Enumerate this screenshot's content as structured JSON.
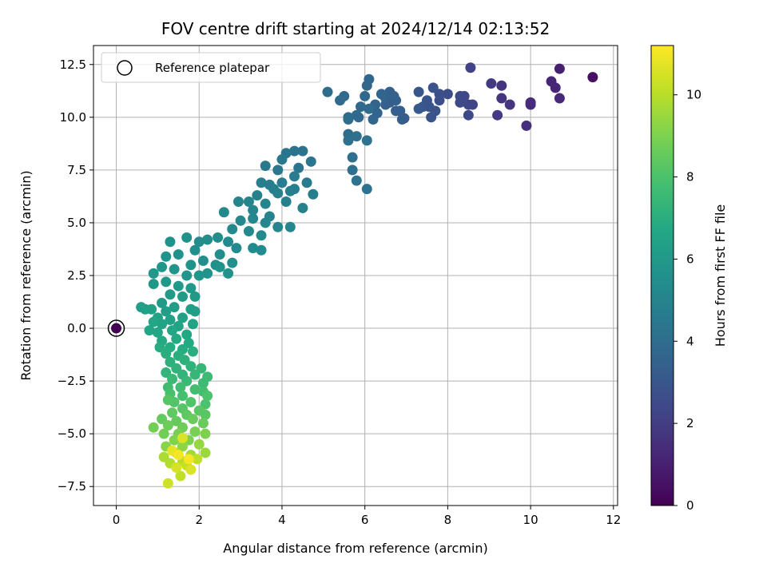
{
  "chart_data": {
    "type": "scatter",
    "title": "FOV centre drift starting at 2024/12/14 02:13:52",
    "xlabel": "Angular distance from reference (arcmin)",
    "ylabel": "Rotation from reference (arcmin)",
    "xlim": [
      -0.55,
      12.1
    ],
    "ylim": [
      -8.4,
      13.4
    ],
    "xticks": [
      0,
      2,
      4,
      6,
      8,
      10,
      12
    ],
    "yticks": [
      -7.5,
      -5.0,
      -2.5,
      0.0,
      2.5,
      5.0,
      7.5,
      10.0,
      12.5
    ],
    "grid": true,
    "legend": {
      "placement": "top-left",
      "entries": [
        "Reference platepar"
      ]
    },
    "reference_point": {
      "x": 0,
      "y": 0
    },
    "colorbar": {
      "label": "Hours from first FF file",
      "colormap": "viridis",
      "range": [
        0,
        11.2
      ],
      "ticks": [
        0,
        2,
        4,
        6,
        8,
        10
      ]
    },
    "points_note_values": "each point: [x, y, hours]",
    "points": [
      [
        11.5,
        11.9,
        0.5
      ],
      [
        10.7,
        12.3,
        1.0
      ],
      [
        10.5,
        11.7,
        1.2
      ],
      [
        10.6,
        11.4,
        1.2
      ],
      [
        10.7,
        10.9,
        1.3
      ],
      [
        10.0,
        10.7,
        1.4
      ],
      [
        10.0,
        10.6,
        1.4
      ],
      [
        9.9,
        9.6,
        1.5
      ],
      [
        9.5,
        10.6,
        1.7
      ],
      [
        9.3,
        10.9,
        1.7
      ],
      [
        9.3,
        11.5,
        1.7
      ],
      [
        9.05,
        11.6,
        1.9
      ],
      [
        9.2,
        10.1,
        1.9
      ],
      [
        8.55,
        12.35,
        2.2
      ],
      [
        8.5,
        10.6,
        2.3
      ],
      [
        8.6,
        10.6,
        2.3
      ],
      [
        8.5,
        10.1,
        2.4
      ],
      [
        8.4,
        11.0,
        2.4
      ],
      [
        8.3,
        10.7,
        2.5
      ],
      [
        8.3,
        11.0,
        2.5
      ],
      [
        8.0,
        11.1,
        2.6
      ],
      [
        7.8,
        11.1,
        2.7
      ],
      [
        7.8,
        10.8,
        2.7
      ],
      [
        7.7,
        10.3,
        2.8
      ],
      [
        7.65,
        11.4,
        2.8
      ],
      [
        7.6,
        10.0,
        2.9
      ],
      [
        7.55,
        10.5,
        2.9
      ],
      [
        7.5,
        10.8,
        2.9
      ],
      [
        7.4,
        10.5,
        3.0
      ],
      [
        7.3,
        11.2,
        3.0
      ],
      [
        7.3,
        10.4,
        3.1
      ],
      [
        6.95,
        9.95,
        3.3
      ],
      [
        6.85,
        10.3,
        3.3
      ],
      [
        6.75,
        10.3,
        3.4
      ],
      [
        6.75,
        10.8,
        3.4
      ],
      [
        6.6,
        11.2,
        3.4
      ],
      [
        6.7,
        11.0,
        3.5
      ],
      [
        6.5,
        10.6,
        3.5
      ],
      [
        6.5,
        10.9,
        3.6
      ],
      [
        6.4,
        11.1,
        3.6
      ],
      [
        6.25,
        10.6,
        3.6
      ],
      [
        6.2,
        9.9,
        3.7
      ],
      [
        6.1,
        11.8,
        3.7
      ],
      [
        6.05,
        11.5,
        3.7
      ],
      [
        6.0,
        11.0,
        3.8
      ],
      [
        5.9,
        10.5,
        3.8
      ],
      [
        5.85,
        10.0,
        3.8
      ],
      [
        5.8,
        10.1,
        3.8
      ],
      [
        6.1,
        10.4,
        3.9
      ],
      [
        5.6,
        10.0,
        3.9
      ],
      [
        5.5,
        11.0,
        3.9
      ],
      [
        5.4,
        10.8,
        3.9
      ],
      [
        5.1,
        11.2,
        4.0
      ],
      [
        5.6,
        9.9,
        4.0
      ],
      [
        5.6,
        9.2,
        4.0
      ],
      [
        5.8,
        9.1,
        4.1
      ],
      [
        5.6,
        8.9,
        4.1
      ],
      [
        5.7,
        8.1,
        4.1
      ],
      [
        5.7,
        7.5,
        4.1
      ],
      [
        5.8,
        7.0,
        4.2
      ],
      [
        6.05,
        8.9,
        4.2
      ],
      [
        6.05,
        6.6,
        4.2
      ],
      [
        6.6,
        10.7,
        3.4
      ],
      [
        6.9,
        9.9,
        3.3
      ],
      [
        6.3,
        10.2,
        3.6
      ],
      [
        4.5,
        8.4,
        4.3
      ],
      [
        4.3,
        8.4,
        4.3
      ],
      [
        4.1,
        8.3,
        4.3
      ],
      [
        4.7,
        7.9,
        4.4
      ],
      [
        4.4,
        7.6,
        4.4
      ],
      [
        4.0,
        8.0,
        4.5
      ],
      [
        3.6,
        7.7,
        4.5
      ],
      [
        3.9,
        7.5,
        4.5
      ],
      [
        4.3,
        7.2,
        4.6
      ],
      [
        4.6,
        6.9,
        4.6
      ],
      [
        4.3,
        6.6,
        4.7
      ],
      [
        4.0,
        6.9,
        4.7
      ],
      [
        3.7,
        6.8,
        4.7
      ],
      [
        4.75,
        6.35,
        4.8
      ],
      [
        4.2,
        6.5,
        4.8
      ],
      [
        3.8,
        6.6,
        4.8
      ],
      [
        3.5,
        6.9,
        4.8
      ],
      [
        3.4,
        6.3,
        4.9
      ],
      [
        3.9,
        6.4,
        4.9
      ],
      [
        4.5,
        5.7,
        4.9
      ],
      [
        4.1,
        6.0,
        4.9
      ],
      [
        3.6,
        5.9,
        5.0
      ],
      [
        3.2,
        6.0,
        5.0
      ],
      [
        2.95,
        6.0,
        5.0
      ],
      [
        3.3,
        5.6,
        5.0
      ],
      [
        3.7,
        5.3,
        5.0
      ],
      [
        4.2,
        4.8,
        5.1
      ],
      [
        3.9,
        4.8,
        5.1
      ],
      [
        3.6,
        5.0,
        5.1
      ],
      [
        3.3,
        5.2,
        5.1
      ],
      [
        3.0,
        5.1,
        5.2
      ],
      [
        2.6,
        5.5,
        5.2
      ],
      [
        2.8,
        4.7,
        5.2
      ],
      [
        3.2,
        4.6,
        5.2
      ],
      [
        3.5,
        4.4,
        5.3
      ],
      [
        3.5,
        3.7,
        5.3
      ],
      [
        3.3,
        3.8,
        5.3
      ],
      [
        2.9,
        3.8,
        5.3
      ],
      [
        2.7,
        4.1,
        5.3
      ],
      [
        2.45,
        4.3,
        5.4
      ],
      [
        2.2,
        4.2,
        5.4
      ],
      [
        2.0,
        4.1,
        5.4
      ],
      [
        2.5,
        3.5,
        5.4
      ],
      [
        2.8,
        3.1,
        5.5
      ],
      [
        2.4,
        3.0,
        5.5
      ],
      [
        2.1,
        3.2,
        5.5
      ],
      [
        1.9,
        3.7,
        5.5
      ],
      [
        1.7,
        4.3,
        5.6
      ],
      [
        1.3,
        4.1,
        5.6
      ],
      [
        1.5,
        3.5,
        5.6
      ],
      [
        1.2,
        3.4,
        5.6
      ],
      [
        1.8,
        3.0,
        5.7
      ],
      [
        2.2,
        2.6,
        5.7
      ],
      [
        2.7,
        2.6,
        5.7
      ],
      [
        2.5,
        2.9,
        5.7
      ],
      [
        2.0,
        2.5,
        5.8
      ],
      [
        1.7,
        2.5,
        5.8
      ],
      [
        1.4,
        2.8,
        5.8
      ],
      [
        1.1,
        2.9,
        5.9
      ],
      [
        0.9,
        2.6,
        5.9
      ],
      [
        0.9,
        2.1,
        5.9
      ],
      [
        1.2,
        2.2,
        6.0
      ],
      [
        1.5,
        2.0,
        6.0
      ],
      [
        1.8,
        1.9,
        6.0
      ],
      [
        1.9,
        1.5,
        6.0
      ],
      [
        1.6,
        1.5,
        6.1
      ],
      [
        1.3,
        1.6,
        6.1
      ],
      [
        1.1,
        1.2,
        6.1
      ],
      [
        1.8,
        0.9,
        6.2
      ],
      [
        1.9,
        0.8,
        6.2
      ],
      [
        1.4,
        1.0,
        6.2
      ],
      [
        1.2,
        0.8,
        6.2
      ],
      [
        0.85,
        0.9,
        6.3
      ],
      [
        0.6,
        1.0,
        6.3
      ],
      [
        0.7,
        0.9,
        6.3
      ],
      [
        1.0,
        0.5,
        6.4
      ],
      [
        1.3,
        0.4,
        6.4
      ],
      [
        1.6,
        0.5,
        6.4
      ],
      [
        1.85,
        0.2,
        6.5
      ],
      [
        1.5,
        0.1,
        6.5
      ],
      [
        1.1,
        0.2,
        6.5
      ],
      [
        0.9,
        0.3,
        6.6
      ],
      [
        0.8,
        -0.1,
        6.6
      ],
      [
        1.0,
        -0.2,
        6.6
      ],
      [
        1.35,
        -0.1,
        6.7
      ],
      [
        1.7,
        -0.3,
        6.7
      ],
      [
        1.75,
        -0.7,
        6.8
      ],
      [
        1.45,
        -0.5,
        6.8
      ],
      [
        1.1,
        -0.6,
        6.8
      ],
      [
        1.05,
        -0.9,
        6.9
      ],
      [
        1.3,
        -0.9,
        6.9
      ],
      [
        1.6,
        -1.0,
        6.9
      ],
      [
        1.85,
        -1.1,
        7.0
      ],
      [
        1.5,
        -1.3,
        7.0
      ],
      [
        1.2,
        -1.2,
        7.0
      ],
      [
        1.3,
        -1.6,
        7.1
      ],
      [
        1.65,
        -1.5,
        7.1
      ],
      [
        1.8,
        -1.8,
        7.2
      ],
      [
        1.45,
        -1.9,
        7.2
      ],
      [
        1.2,
        -2.1,
        7.3
      ],
      [
        1.6,
        -2.2,
        7.3
      ],
      [
        1.9,
        -2.2,
        7.4
      ],
      [
        2.05,
        -1.9,
        7.4
      ],
      [
        1.35,
        -2.4,
        7.5
      ],
      [
        1.7,
        -2.5,
        7.5
      ],
      [
        2.1,
        -2.6,
        7.6
      ],
      [
        2.2,
        -2.3,
        7.6
      ],
      [
        1.25,
        -2.8,
        7.7
      ],
      [
        1.55,
        -2.8,
        7.7
      ],
      [
        1.9,
        -2.9,
        7.8
      ],
      [
        2.1,
        -3.0,
        7.8
      ],
      [
        1.3,
        -3.1,
        7.9
      ],
      [
        1.6,
        -3.2,
        7.9
      ],
      [
        2.2,
        -3.2,
        8.0
      ],
      [
        2.15,
        -3.6,
        8.0
      ],
      [
        1.8,
        -3.5,
        8.1
      ],
      [
        1.4,
        -3.5,
        8.1
      ],
      [
        1.25,
        -3.4,
        8.2
      ],
      [
        1.6,
        -3.8,
        8.2
      ],
      [
        2.0,
        -3.9,
        8.3
      ],
      [
        2.15,
        -4.1,
        8.3
      ],
      [
        1.7,
        -4.1,
        8.4
      ],
      [
        1.35,
        -4.0,
        8.4
      ],
      [
        1.1,
        -4.3,
        8.5
      ],
      [
        1.45,
        -4.4,
        8.5
      ],
      [
        1.85,
        -4.3,
        8.6
      ],
      [
        2.1,
        -4.5,
        8.6
      ],
      [
        1.6,
        -4.7,
        8.7
      ],
      [
        1.25,
        -4.6,
        8.7
      ],
      [
        0.9,
        -4.7,
        8.8
      ],
      [
        1.15,
        -5.0,
        8.8
      ],
      [
        1.5,
        -5.0,
        8.9
      ],
      [
        1.9,
        -4.9,
        8.9
      ],
      [
        2.15,
        -5.0,
        9.0
      ],
      [
        1.75,
        -5.3,
        9.0
      ],
      [
        1.4,
        -5.3,
        9.1
      ],
      [
        1.2,
        -5.6,
        9.2
      ],
      [
        1.6,
        -5.6,
        9.3
      ],
      [
        2.0,
        -5.5,
        9.4
      ],
      [
        2.15,
        -5.9,
        9.5
      ],
      [
        1.8,
        -6.0,
        9.6
      ],
      [
        1.45,
        -5.9,
        9.7
      ],
      [
        1.15,
        -6.1,
        9.8
      ],
      [
        1.3,
        -6.4,
        9.9
      ],
      [
        1.6,
        -6.3,
        10.0
      ],
      [
        1.95,
        -6.2,
        10.1
      ],
      [
        1.7,
        -6.5,
        10.2
      ],
      [
        1.55,
        -7.0,
        10.2
      ],
      [
        1.25,
        -7.35,
        10.4
      ],
      [
        1.45,
        -6.6,
        10.5
      ],
      [
        1.8,
        -6.7,
        10.6
      ],
      [
        1.6,
        -5.2,
        10.6
      ],
      [
        1.35,
        -5.8,
        10.8
      ],
      [
        1.5,
        -6.0,
        11.0
      ],
      [
        1.75,
        -6.2,
        11.1
      ]
    ]
  }
}
